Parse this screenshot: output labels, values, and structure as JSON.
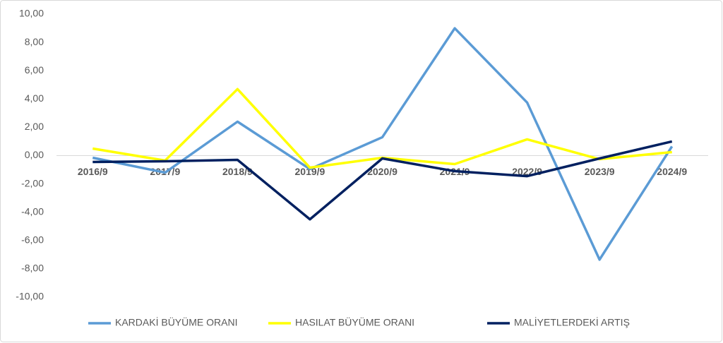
{
  "chart_data": {
    "type": "line",
    "categories": [
      "2016/9",
      "2017/9",
      "2018/9",
      "2019/9",
      "2020/9",
      "2021/9",
      "2022/9",
      "2023/9",
      "2024/9"
    ],
    "series": [
      {
        "name": "KARDAKİ BÜYÜME ORANI",
        "color": "#5b9bd5",
        "values": [
          -0.15,
          -1.2,
          2.4,
          -0.95,
          1.3,
          9.0,
          3.75,
          -7.35,
          0.65
        ]
      },
      {
        "name": "HASILAT BÜYÜME ORANI",
        "color": "#ffff00",
        "values": [
          0.5,
          -0.35,
          4.7,
          -0.85,
          -0.15,
          -0.6,
          1.15,
          -0.25,
          0.25
        ]
      },
      {
        "name": "MALİYETLERDEKİ ARTIŞ",
        "color": "#002060",
        "values": [
          -0.45,
          -0.4,
          -0.3,
          -4.5,
          -0.2,
          -1.1,
          -1.45,
          -0.2,
          1.0
        ]
      }
    ],
    "ylim": [
      -10,
      10
    ],
    "yticks": [
      {
        "value": 10,
        "label": "10,00"
      },
      {
        "value": 8,
        "label": "8,00"
      },
      {
        "value": 6,
        "label": "6,00"
      },
      {
        "value": 4,
        "label": "4,00"
      },
      {
        "value": 2,
        "label": "2,00"
      },
      {
        "value": 0,
        "label": "0,00"
      },
      {
        "value": -2,
        "label": "-2,00"
      },
      {
        "value": -4,
        "label": "-4,00"
      },
      {
        "value": -6,
        "label": "-6,00"
      },
      {
        "value": -8,
        "label": "-8,00"
      },
      {
        "value": -10,
        "label": "-10,00"
      }
    ],
    "grid": false,
    "legend": "bottom"
  }
}
